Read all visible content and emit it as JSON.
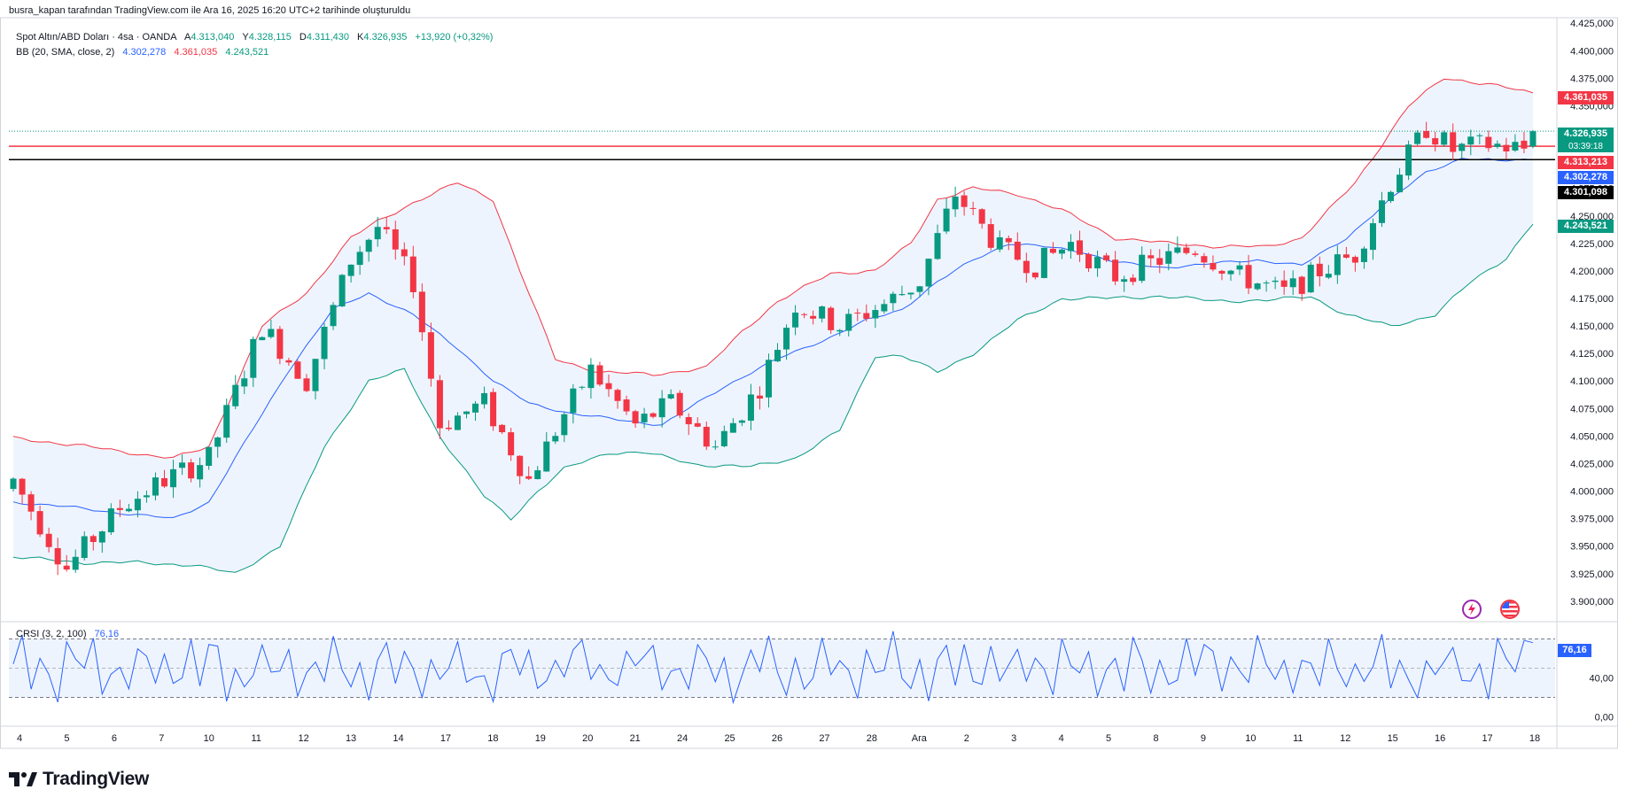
{
  "caption": "busra_kapan tarafından TradingView.com ile Ara 16, 2025 16:20 UTC+2 tarihinde oluşturuldu",
  "legend": {
    "symbol": "Spot Altın/ABD Doları · 4sa · OANDA",
    "open_label": "A",
    "open": "4.313,040",
    "high_label": "Y",
    "high": "4.328,115",
    "low_label": "D",
    "low": "4.311,430",
    "close_label": "K",
    "close": "4.326,935",
    "change": "+13,920 (+0,32%)",
    "bb_label": "BB (20, SMA, close, 2)",
    "bb_basis": "4.302,278",
    "bb_upper": "4.361,035",
    "bb_lower": "4.243,521"
  },
  "crsi_legend": {
    "label": "CRSI (3, 2, 100)",
    "value": "76,16"
  },
  "price_tags": {
    "upper": "4.361,035",
    "last": "4.326,935",
    "countdown": "03:39:18",
    "red_line": "4.313,213",
    "basis": "4.302,278",
    "black_line": "4.301,098",
    "lower": "4.243,521",
    "crsi": "76,16"
  },
  "icons": [
    "lightning-icon",
    "us-flag-icon",
    "tradingview-logo-icon"
  ],
  "logo_text": "TradingView",
  "colors": {
    "up": "#089981",
    "down": "#f23645",
    "basis": "#2962ff",
    "upper_band": "#f23645",
    "lower_band": "#089981",
    "band_fill": "#eef4fd",
    "black_line": "#000000",
    "red_line": "#f23645",
    "crsi": "#2962ff"
  },
  "chart_data": [
    {
      "type": "candlestick",
      "title": "Spot Altın/ABD Doları · 4sa · OANDA",
      "x_ticks": [
        "4",
        "5",
        "6",
        "7",
        "10",
        "11",
        "12",
        "13",
        "14",
        "17",
        "18",
        "19",
        "20",
        "21",
        "24",
        "25",
        "26",
        "27",
        "28",
        "Ara",
        "2",
        "3",
        "4",
        "5",
        "8",
        "9",
        "10",
        "11",
        "12",
        "15",
        "16",
        "17",
        "18"
      ],
      "y_ticks": [
        3900,
        3925,
        3950,
        3975,
        4000,
        4025,
        4050,
        4075,
        4100,
        4125,
        4150,
        4175,
        4200,
        4225,
        4250,
        4275,
        4300,
        4325,
        4350,
        4375,
        4400,
        4425
      ],
      "y_tick_labels": [
        "3.900,000",
        "3.925,000",
        "3.950,000",
        "3.975,000",
        "4.000,000",
        "4.025,000",
        "4.050,000",
        "4.075,000",
        "4.100,000",
        "4.125,000",
        "4.150,000",
        "4.175,000",
        "4.200,000",
        "4.225,000",
        "4.250,000",
        "4.275,000",
        "4.300,000",
        "4.325,000",
        "4.350,000",
        "4.375,000",
        "4.400,000",
        "4.425,000"
      ],
      "ylim": [
        3883,
        4430
      ],
      "horizontal_lines": [
        {
          "value": 4313.213,
          "color": "#f23645"
        },
        {
          "value": 4301.098,
          "color": "#000000"
        }
      ],
      "close_path": [
        [
          0,
          4010
        ],
        [
          6,
          3930
        ],
        [
          12,
          3985
        ],
        [
          17,
          4010
        ],
        [
          22,
          4030
        ],
        [
          28,
          4150
        ],
        [
          33,
          4100
        ],
        [
          38,
          4210
        ],
        [
          41,
          4240
        ],
        [
          45,
          4190
        ],
        [
          48,
          4060
        ],
        [
          53,
          4080
        ],
        [
          58,
          4010
        ],
        [
          62,
          4070
        ],
        [
          65,
          4110
        ],
        [
          70,
          4060
        ],
        [
          74,
          4080
        ],
        [
          79,
          4040
        ],
        [
          84,
          4095
        ],
        [
          88,
          4170
        ],
        [
          93,
          4150
        ],
        [
          98,
          4170
        ],
        [
          102,
          4190
        ],
        [
          106,
          4270
        ],
        [
          111,
          4220
        ],
        [
          115,
          4205
        ],
        [
          119,
          4225
        ],
        [
          124,
          4195
        ],
        [
          129,
          4210
        ],
        [
          133,
          4220
        ],
        [
          138,
          4195
        ],
        [
          143,
          4180
        ],
        [
          147,
          4200
        ],
        [
          151,
          4215
        ],
        [
          155,
          4280
        ],
        [
          159,
          4330
        ],
        [
          162,
          4310
        ],
        [
          166,
          4315
        ],
        [
          171,
          4310
        ]
      ],
      "bb_basis_path": [
        [
          0,
          3990
        ],
        [
          7,
          3985
        ],
        [
          12,
          3980
        ],
        [
          18,
          3975
        ],
        [
          22,
          3990
        ],
        [
          25,
          4030
        ],
        [
          31,
          4110
        ],
        [
          36,
          4165
        ],
        [
          40,
          4180
        ],
        [
          45,
          4160
        ],
        [
          50,
          4130
        ],
        [
          54,
          4100
        ],
        [
          58,
          4080
        ],
        [
          63,
          4070
        ],
        [
          68,
          4065
        ],
        [
          73,
          4060
        ],
        [
          76,
          4075
        ],
        [
          80,
          4095
        ],
        [
          86,
          4120
        ],
        [
          92,
          4140
        ],
        [
          96,
          4155
        ],
        [
          100,
          4165
        ],
        [
          104,
          4190
        ],
        [
          108,
          4210
        ],
        [
          112,
          4225
        ],
        [
          116,
          4222
        ],
        [
          120,
          4218
        ],
        [
          124,
          4208
        ],
        [
          129,
          4203
        ],
        [
          134,
          4206
        ],
        [
          140,
          4210
        ],
        [
          145,
          4205
        ],
        [
          150,
          4230
        ],
        [
          155,
          4265
        ],
        [
          159,
          4290
        ],
        [
          163,
          4302
        ],
        [
          167,
          4300
        ],
        [
          171,
          4302
        ]
      ],
      "bb_upper_path": [
        [
          0,
          4048
        ],
        [
          7,
          4042
        ],
        [
          12,
          4036
        ],
        [
          18,
          4030
        ],
        [
          22,
          4040
        ],
        [
          28,
          4150
        ],
        [
          33,
          4180
        ],
        [
          38,
          4230
        ],
        [
          41,
          4245
        ],
        [
          45,
          4262
        ],
        [
          50,
          4280
        ],
        [
          54,
          4265
        ],
        [
          57,
          4200
        ],
        [
          61,
          4120
        ],
        [
          66,
          4108
        ],
        [
          72,
          4106
        ],
        [
          78,
          4112
        ],
        [
          82,
          4145
        ],
        [
          86,
          4172
        ],
        [
          92,
          4198
        ],
        [
          97,
          4200
        ],
        [
          101,
          4225
        ],
        [
          104,
          4265
        ],
        [
          108,
          4275
        ],
        [
          113,
          4270
        ],
        [
          118,
          4255
        ],
        [
          124,
          4230
        ],
        [
          130,
          4225
        ],
        [
          136,
          4222
        ],
        [
          141,
          4222
        ],
        [
          145,
          4230
        ],
        [
          151,
          4280
        ],
        [
          157,
          4350
        ],
        [
          161,
          4375
        ],
        [
          166,
          4370
        ],
        [
          171,
          4361
        ]
      ],
      "bb_lower_path": [
        [
          0,
          3940
        ],
        [
          8,
          3935
        ],
        [
          14,
          3935
        ],
        [
          20,
          3933
        ],
        [
          25,
          3925
        ],
        [
          30,
          3950
        ],
        [
          35,
          4040
        ],
        [
          40,
          4100
        ],
        [
          44,
          4110
        ],
        [
          48,
          4050
        ],
        [
          53,
          3995
        ],
        [
          56,
          3975
        ],
        [
          59,
          4000
        ],
        [
          62,
          4020
        ],
        [
          67,
          4035
        ],
        [
          71,
          4035
        ],
        [
          77,
          4024
        ],
        [
          83,
          4022
        ],
        [
          88,
          4030
        ],
        [
          93,
          4055
        ],
        [
          97,
          4123
        ],
        [
          100,
          4123
        ],
        [
          104,
          4108
        ],
        [
          108,
          4125
        ],
        [
          113,
          4155
        ],
        [
          118,
          4175
        ],
        [
          123,
          4175
        ],
        [
          129,
          4177
        ],
        [
          135,
          4173
        ],
        [
          141,
          4173
        ],
        [
          146,
          4177
        ],
        [
          150,
          4160
        ],
        [
          155,
          4150
        ],
        [
          160,
          4160
        ],
        [
          164,
          4190
        ],
        [
          168,
          4212
        ],
        [
          171,
          4243
        ]
      ],
      "last_bar": {
        "open": 4313.04,
        "high": 4328.115,
        "low": 4311.43,
        "close": 4326.935
      }
    },
    {
      "type": "line",
      "title": "CRSI (3, 2, 100)",
      "y_ticks": [
        0,
        40
      ],
      "y_tick_labels": [
        "0,00",
        "40,00"
      ],
      "reference_lines": [
        20,
        80
      ],
      "ylim": [
        -5,
        95
      ],
      "last_value": 76.16
    }
  ]
}
